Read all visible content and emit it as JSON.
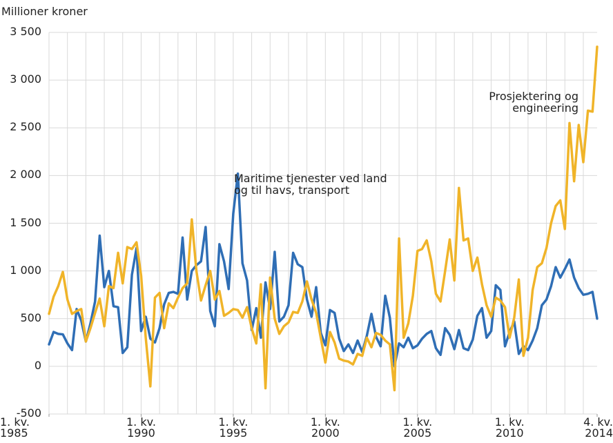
{
  "chart_data": {
    "type": "line",
    "y_label": "Millioner kroner",
    "annotations": [
      {
        "text": "Prosjektering og\nengineering"
      },
      {
        "text": "Maritime tjenester ved land\nog til havs, transport"
      }
    ],
    "categories": [
      "1. kv.\n1985",
      null,
      null,
      null,
      null,
      null,
      null,
      null,
      null,
      null,
      null,
      null,
      null,
      null,
      null,
      null,
      null,
      null,
      null,
      null,
      "1. kv.\n1990",
      null,
      null,
      null,
      null,
      null,
      null,
      null,
      null,
      null,
      null,
      null,
      null,
      null,
      null,
      null,
      null,
      null,
      null,
      null,
      "1. kv.\n1995",
      null,
      null,
      null,
      null,
      null,
      null,
      null,
      null,
      null,
      null,
      null,
      null,
      null,
      null,
      null,
      null,
      null,
      null,
      null,
      "1. kv.\n2000",
      null,
      null,
      null,
      null,
      null,
      null,
      null,
      null,
      null,
      null,
      null,
      null,
      null,
      null,
      null,
      null,
      null,
      null,
      null,
      "1. kv.\n2005",
      null,
      null,
      null,
      null,
      null,
      null,
      null,
      null,
      null,
      null,
      null,
      null,
      null,
      null,
      null,
      null,
      null,
      null,
      null,
      "1. kv.\n2010",
      null,
      null,
      null,
      null,
      null,
      null,
      null,
      null,
      null,
      null,
      null,
      null,
      null,
      null,
      null,
      null,
      null,
      null,
      "4. kv.\n2014"
    ],
    "series": [
      {
        "name": "Maritime tjenester ved land og til havs, transport",
        "color": "#2f6eb5",
        "values": [
          230,
          360,
          340,
          335,
          240,
          170,
          600,
          480,
          260,
          450,
          680,
          1370,
          830,
          1000,
          630,
          620,
          140,
          200,
          960,
          1240,
          370,
          520,
          290,
          250,
          400,
          650,
          770,
          780,
          760,
          1350,
          700,
          1000,
          1060,
          1100,
          1460,
          580,
          420,
          1280,
          1100,
          810,
          1600,
          2020,
          1080,
          900,
          380,
          610,
          300,
          880,
          600,
          1200,
          470,
          520,
          640,
          1190,
          1070,
          1040,
          700,
          520,
          830,
          350,
          220,
          590,
          560,
          290,
          160,
          230,
          140,
          270,
          150,
          320,
          550,
          310,
          210,
          740,
          510,
          0,
          240,
          200,
          300,
          190,
          220,
          290,
          340,
          370,
          190,
          120,
          400,
          330,
          180,
          380,
          190,
          170,
          280,
          530,
          610,
          300,
          370,
          850,
          800,
          210,
          360,
          470,
          130,
          210,
          170,
          270,
          400,
          640,
          700,
          840,
          1040,
          930,
          1020,
          1120,
          930,
          820,
          750,
          760,
          780,
          500
        ]
      },
      {
        "name": "Prosjektering og engineering",
        "color": "#f0b429",
        "values": [
          550,
          730,
          840,
          990,
          700,
          550,
          580,
          600,
          260,
          400,
          560,
          710,
          420,
          840,
          820,
          1190,
          870,
          1250,
          1230,
          1300,
          950,
          300,
          -210,
          720,
          770,
          400,
          660,
          610,
          720,
          820,
          870,
          1540,
          1000,
          690,
          850,
          1000,
          700,
          790,
          530,
          560,
          600,
          590,
          510,
          620,
          400,
          240,
          860,
          -230,
          930,
          500,
          340,
          420,
          460,
          570,
          560,
          680,
          890,
          700,
          560,
          300,
          40,
          360,
          250,
          80,
          60,
          50,
          20,
          130,
          110,
          300,
          200,
          350,
          330,
          270,
          230,
          -250,
          1340,
          300,
          450,
          740,
          1210,
          1230,
          1320,
          1100,
          760,
          680,
          1000,
          1330,
          900,
          1870,
          1320,
          1340,
          1000,
          1140,
          860,
          640,
          520,
          720,
          690,
          620,
          300,
          510,
          910,
          110,
          300,
          800,
          1040,
          1080,
          1240,
          1500,
          1680,
          1740,
          1440,
          2550,
          1940,
          2530,
          2140,
          2680,
          2670,
          3350
        ]
      }
    ],
    "ylim": [
      -500,
      3500
    ],
    "yticks": [
      -500,
      0,
      500,
      {
        "value": 1000,
        "label": "1 000"
      },
      {
        "value": 1500,
        "label": "1 500"
      },
      {
        "value": 2000,
        "label": "2 000"
      },
      {
        "value": 2500,
        "label": "2 500"
      },
      {
        "value": 3000,
        "label": "3 000"
      },
      {
        "value": 3500,
        "label": "3 500"
      }
    ],
    "grid": true
  }
}
